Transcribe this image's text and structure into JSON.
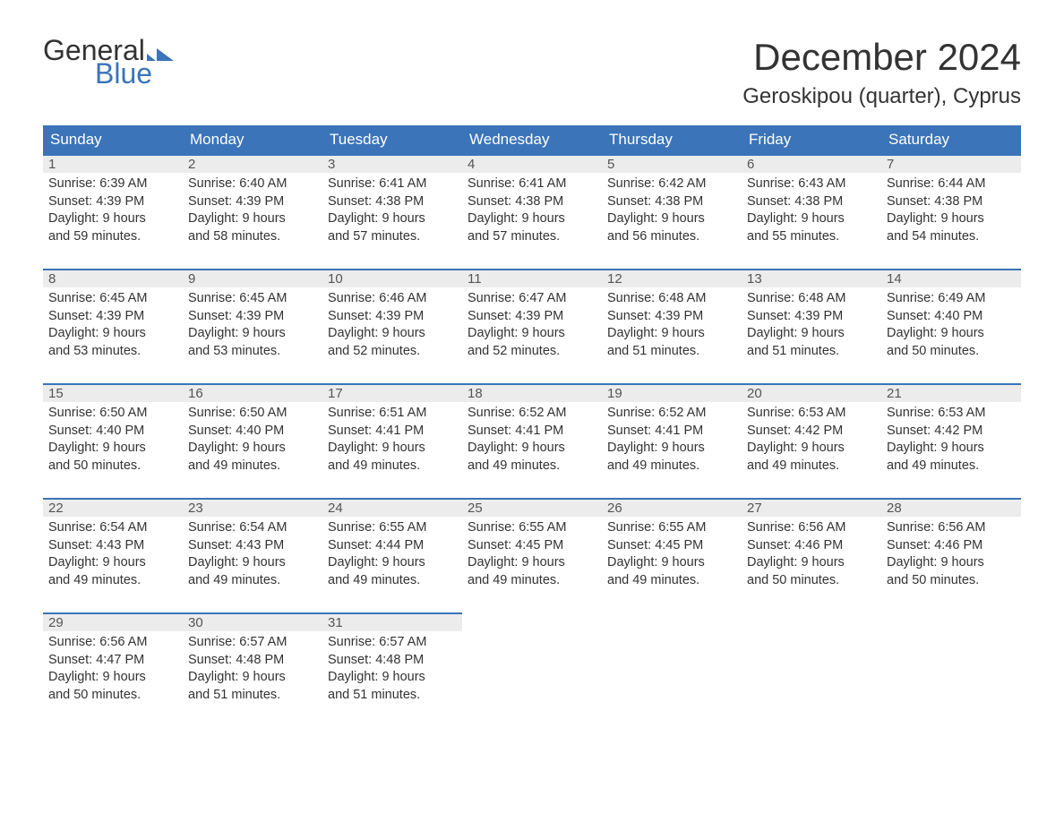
{
  "logo": {
    "text_general": "General",
    "text_blue": "Blue",
    "flag_color": "#3b74b9"
  },
  "title": "December 2024",
  "location": "Geroskipou (quarter), Cyprus",
  "colors": {
    "header_bg": "#3b74b9",
    "header_text": "#ffffff",
    "daynum_bg": "#ececec",
    "border_top": "#3b74b9",
    "body_text": "#333333",
    "page_bg": "#ffffff"
  },
  "typography": {
    "title_fontsize": 42,
    "location_fontsize": 24,
    "header_fontsize": 17,
    "body_fontsize": 14.5
  },
  "day_headers": [
    "Sunday",
    "Monday",
    "Tuesday",
    "Wednesday",
    "Thursday",
    "Friday",
    "Saturday"
  ],
  "weeks": [
    [
      {
        "num": "1",
        "sunrise": "Sunrise: 6:39 AM",
        "sunset": "Sunset: 4:39 PM",
        "day1": "Daylight: 9 hours",
        "day2": "and 59 minutes."
      },
      {
        "num": "2",
        "sunrise": "Sunrise: 6:40 AM",
        "sunset": "Sunset: 4:39 PM",
        "day1": "Daylight: 9 hours",
        "day2": "and 58 minutes."
      },
      {
        "num": "3",
        "sunrise": "Sunrise: 6:41 AM",
        "sunset": "Sunset: 4:38 PM",
        "day1": "Daylight: 9 hours",
        "day2": "and 57 minutes."
      },
      {
        "num": "4",
        "sunrise": "Sunrise: 6:41 AM",
        "sunset": "Sunset: 4:38 PM",
        "day1": "Daylight: 9 hours",
        "day2": "and 57 minutes."
      },
      {
        "num": "5",
        "sunrise": "Sunrise: 6:42 AM",
        "sunset": "Sunset: 4:38 PM",
        "day1": "Daylight: 9 hours",
        "day2": "and 56 minutes."
      },
      {
        "num": "6",
        "sunrise": "Sunrise: 6:43 AM",
        "sunset": "Sunset: 4:38 PM",
        "day1": "Daylight: 9 hours",
        "day2": "and 55 minutes."
      },
      {
        "num": "7",
        "sunrise": "Sunrise: 6:44 AM",
        "sunset": "Sunset: 4:38 PM",
        "day1": "Daylight: 9 hours",
        "day2": "and 54 minutes."
      }
    ],
    [
      {
        "num": "8",
        "sunrise": "Sunrise: 6:45 AM",
        "sunset": "Sunset: 4:39 PM",
        "day1": "Daylight: 9 hours",
        "day2": "and 53 minutes."
      },
      {
        "num": "9",
        "sunrise": "Sunrise: 6:45 AM",
        "sunset": "Sunset: 4:39 PM",
        "day1": "Daylight: 9 hours",
        "day2": "and 53 minutes."
      },
      {
        "num": "10",
        "sunrise": "Sunrise: 6:46 AM",
        "sunset": "Sunset: 4:39 PM",
        "day1": "Daylight: 9 hours",
        "day2": "and 52 minutes."
      },
      {
        "num": "11",
        "sunrise": "Sunrise: 6:47 AM",
        "sunset": "Sunset: 4:39 PM",
        "day1": "Daylight: 9 hours",
        "day2": "and 52 minutes."
      },
      {
        "num": "12",
        "sunrise": "Sunrise: 6:48 AM",
        "sunset": "Sunset: 4:39 PM",
        "day1": "Daylight: 9 hours",
        "day2": "and 51 minutes."
      },
      {
        "num": "13",
        "sunrise": "Sunrise: 6:48 AM",
        "sunset": "Sunset: 4:39 PM",
        "day1": "Daylight: 9 hours",
        "day2": "and 51 minutes."
      },
      {
        "num": "14",
        "sunrise": "Sunrise: 6:49 AM",
        "sunset": "Sunset: 4:40 PM",
        "day1": "Daylight: 9 hours",
        "day2": "and 50 minutes."
      }
    ],
    [
      {
        "num": "15",
        "sunrise": "Sunrise: 6:50 AM",
        "sunset": "Sunset: 4:40 PM",
        "day1": "Daylight: 9 hours",
        "day2": "and 50 minutes."
      },
      {
        "num": "16",
        "sunrise": "Sunrise: 6:50 AM",
        "sunset": "Sunset: 4:40 PM",
        "day1": "Daylight: 9 hours",
        "day2": "and 49 minutes."
      },
      {
        "num": "17",
        "sunrise": "Sunrise: 6:51 AM",
        "sunset": "Sunset: 4:41 PM",
        "day1": "Daylight: 9 hours",
        "day2": "and 49 minutes."
      },
      {
        "num": "18",
        "sunrise": "Sunrise: 6:52 AM",
        "sunset": "Sunset: 4:41 PM",
        "day1": "Daylight: 9 hours",
        "day2": "and 49 minutes."
      },
      {
        "num": "19",
        "sunrise": "Sunrise: 6:52 AM",
        "sunset": "Sunset: 4:41 PM",
        "day1": "Daylight: 9 hours",
        "day2": "and 49 minutes."
      },
      {
        "num": "20",
        "sunrise": "Sunrise: 6:53 AM",
        "sunset": "Sunset: 4:42 PM",
        "day1": "Daylight: 9 hours",
        "day2": "and 49 minutes."
      },
      {
        "num": "21",
        "sunrise": "Sunrise: 6:53 AM",
        "sunset": "Sunset: 4:42 PM",
        "day1": "Daylight: 9 hours",
        "day2": "and 49 minutes."
      }
    ],
    [
      {
        "num": "22",
        "sunrise": "Sunrise: 6:54 AM",
        "sunset": "Sunset: 4:43 PM",
        "day1": "Daylight: 9 hours",
        "day2": "and 49 minutes."
      },
      {
        "num": "23",
        "sunrise": "Sunrise: 6:54 AM",
        "sunset": "Sunset: 4:43 PM",
        "day1": "Daylight: 9 hours",
        "day2": "and 49 minutes."
      },
      {
        "num": "24",
        "sunrise": "Sunrise: 6:55 AM",
        "sunset": "Sunset: 4:44 PM",
        "day1": "Daylight: 9 hours",
        "day2": "and 49 minutes."
      },
      {
        "num": "25",
        "sunrise": "Sunrise: 6:55 AM",
        "sunset": "Sunset: 4:45 PM",
        "day1": "Daylight: 9 hours",
        "day2": "and 49 minutes."
      },
      {
        "num": "26",
        "sunrise": "Sunrise: 6:55 AM",
        "sunset": "Sunset: 4:45 PM",
        "day1": "Daylight: 9 hours",
        "day2": "and 49 minutes."
      },
      {
        "num": "27",
        "sunrise": "Sunrise: 6:56 AM",
        "sunset": "Sunset: 4:46 PM",
        "day1": "Daylight: 9 hours",
        "day2": "and 50 minutes."
      },
      {
        "num": "28",
        "sunrise": "Sunrise: 6:56 AM",
        "sunset": "Sunset: 4:46 PM",
        "day1": "Daylight: 9 hours",
        "day2": "and 50 minutes."
      }
    ],
    [
      {
        "num": "29",
        "sunrise": "Sunrise: 6:56 AM",
        "sunset": "Sunset: 4:47 PM",
        "day1": "Daylight: 9 hours",
        "day2": "and 50 minutes."
      },
      {
        "num": "30",
        "sunrise": "Sunrise: 6:57 AM",
        "sunset": "Sunset: 4:48 PM",
        "day1": "Daylight: 9 hours",
        "day2": "and 51 minutes."
      },
      {
        "num": "31",
        "sunrise": "Sunrise: 6:57 AM",
        "sunset": "Sunset: 4:48 PM",
        "day1": "Daylight: 9 hours",
        "day2": "and 51 minutes."
      },
      null,
      null,
      null,
      null
    ]
  ]
}
